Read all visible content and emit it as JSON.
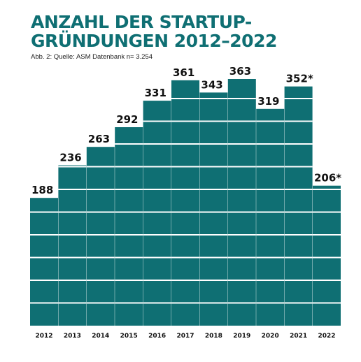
{
  "header": {
    "title_line1": "ANZAHL DER STARTUP-",
    "title_line2": "GRÜNDUNGEN 2012–2022",
    "source": "Abb. 2: Quelle: ASM Datenbank n= 3.254"
  },
  "colors": {
    "bar": "#0f6f73",
    "stripe": "#ffffff",
    "title": "#0f6f73"
  },
  "chart_data": {
    "type": "bar",
    "title": "ANZAHL DER STARTUP-GRÜNDUNGEN 2012–2022",
    "categories": [
      "2012",
      "2013",
      "2014",
      "2015",
      "2016",
      "2017",
      "2018",
      "2019",
      "2020",
      "2021",
      "2022"
    ],
    "values": [
      188,
      236,
      263,
      292,
      331,
      361,
      343,
      363,
      319,
      352,
      206
    ],
    "labels": [
      "188",
      "236",
      "263",
      "292",
      "331",
      "361",
      "343",
      "363",
      "319",
      "352*",
      "206*"
    ],
    "ylim": [
      0,
      363
    ],
    "grid": false,
    "xlabel": "",
    "ylabel": ""
  }
}
